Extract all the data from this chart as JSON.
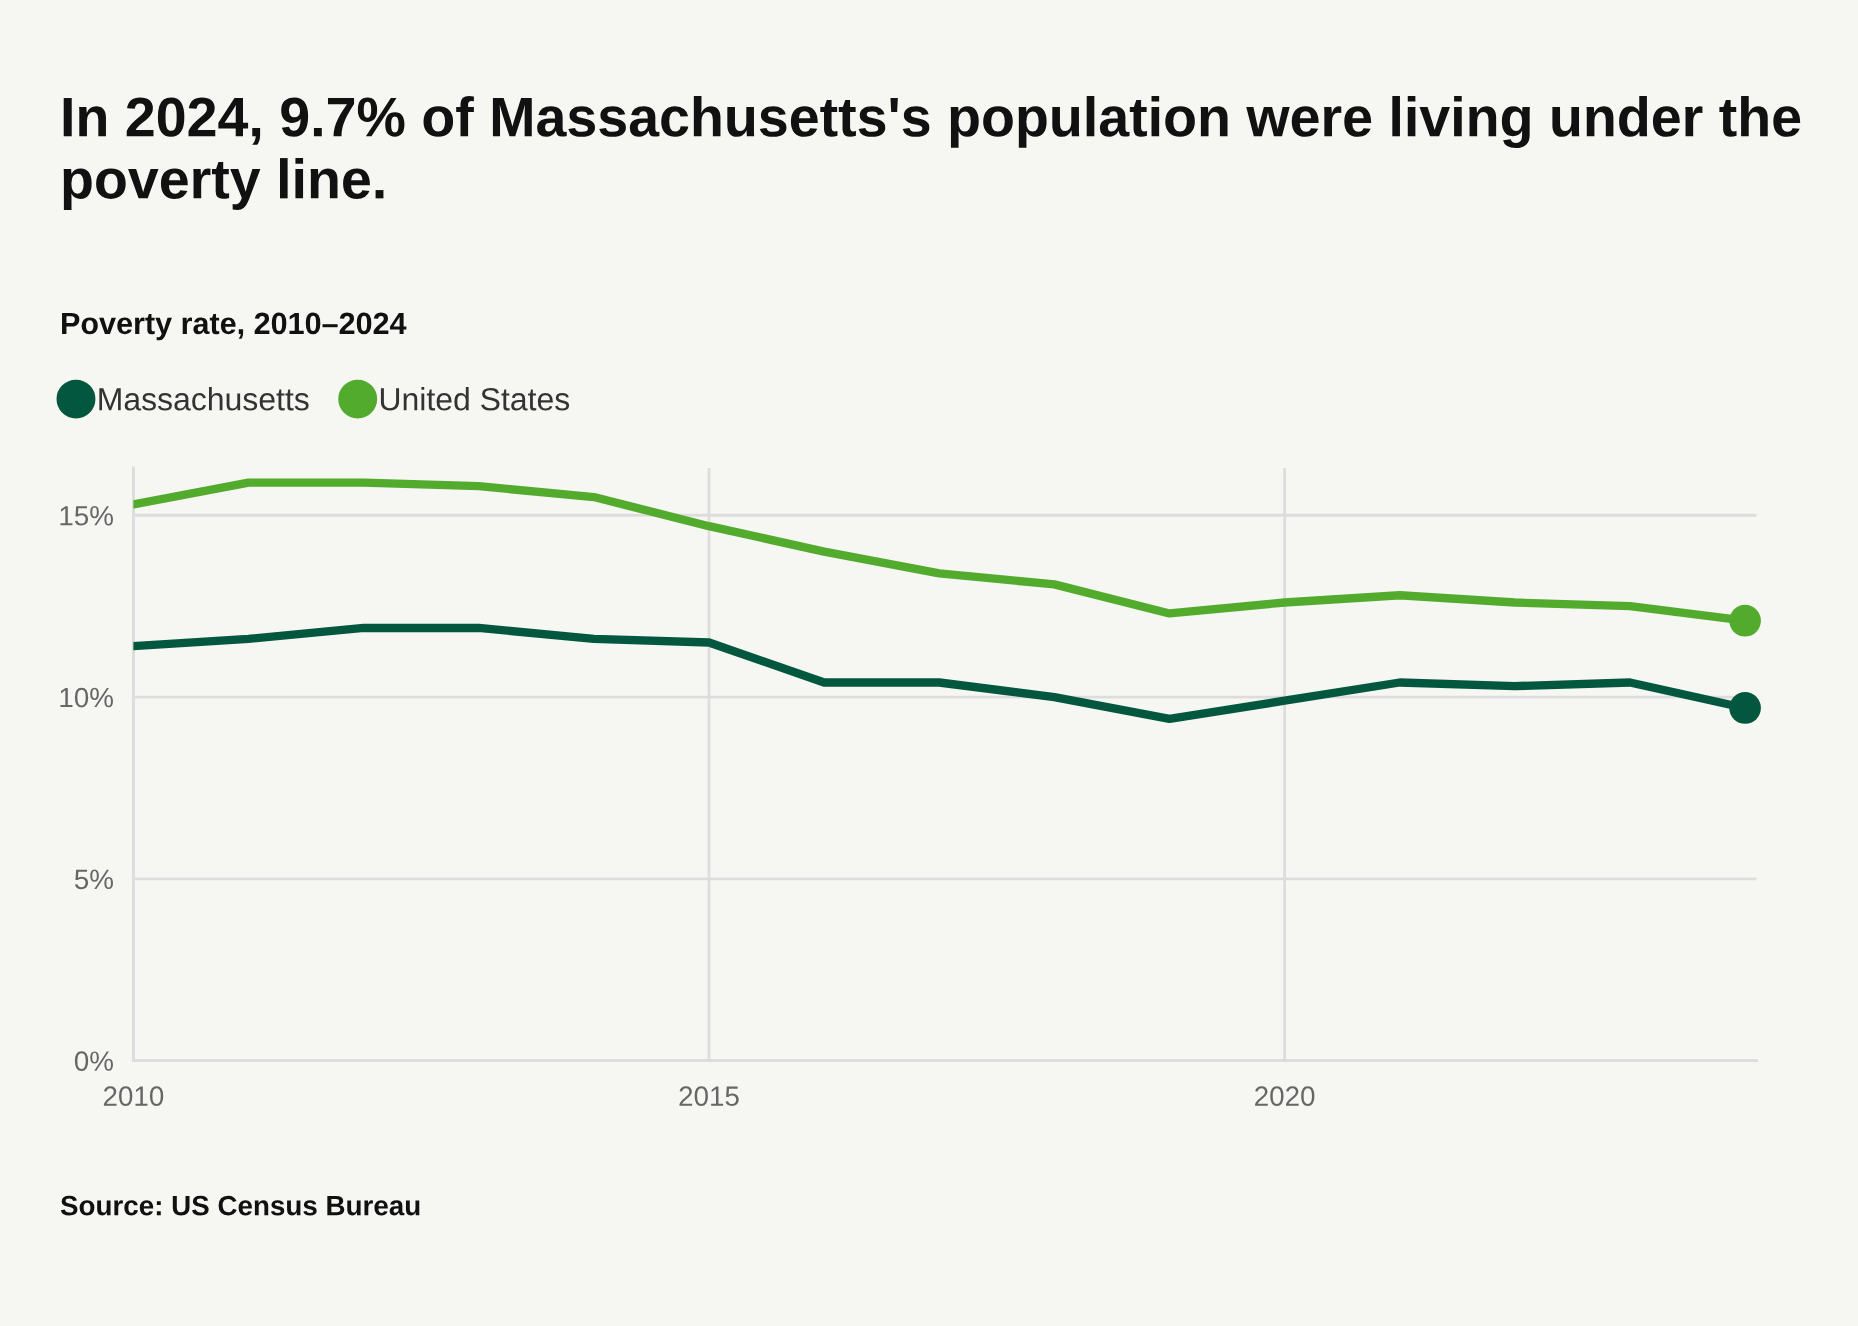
{
  "chart_data": {
    "type": "line",
    "title": "In 2024, 9.7% of Massachusetts's population were living under the poverty line.",
    "subtitle": "Poverty rate, 2010–2024",
    "annotations": [
      "Source: US Census Bureau"
    ],
    "x": [
      2010,
      2011,
      2012,
      2013,
      2014,
      2015,
      2016,
      2017,
      2018,
      2019,
      2020,
      2021,
      2022,
      2023,
      2024
    ],
    "series": [
      {
        "name": "Massachusetts",
        "color": "#04573f",
        "values": [
          11.4,
          11.6,
          11.9,
          11.9,
          11.6,
          11.5,
          10.4,
          10.4,
          10.0,
          9.4,
          9.9,
          10.4,
          10.3,
          10.4,
          9.7
        ]
      },
      {
        "name": "United States",
        "color": "#52ab2d",
        "values": [
          15.3,
          15.9,
          15.9,
          15.8,
          15.5,
          14.7,
          14.0,
          13.4,
          13.1,
          12.3,
          12.6,
          12.8,
          12.6,
          12.5,
          12.1
        ]
      },
      {
        "type": "scatter",
        "color": "#04573f",
        "x": [
          2024
        ],
        "values": [
          9.7
        ]
      },
      {
        "type": "scatter",
        "color": "#52ab2d",
        "x": [
          2024
        ],
        "values": [
          12.1
        ]
      }
    ],
    "xlim": [
      2010,
      2024.1
    ],
    "xticks": [
      2010,
      2015,
      2020
    ],
    "ylim": [
      0,
      16.3
    ],
    "yticks": [
      {
        "value": 0,
        "label": "0%"
      },
      {
        "value": 5,
        "label": "5%"
      },
      {
        "value": 10,
        "label": "10%"
      },
      {
        "value": 15,
        "label": "15%"
      }
    ],
    "grid": true,
    "legend": "top left"
  }
}
